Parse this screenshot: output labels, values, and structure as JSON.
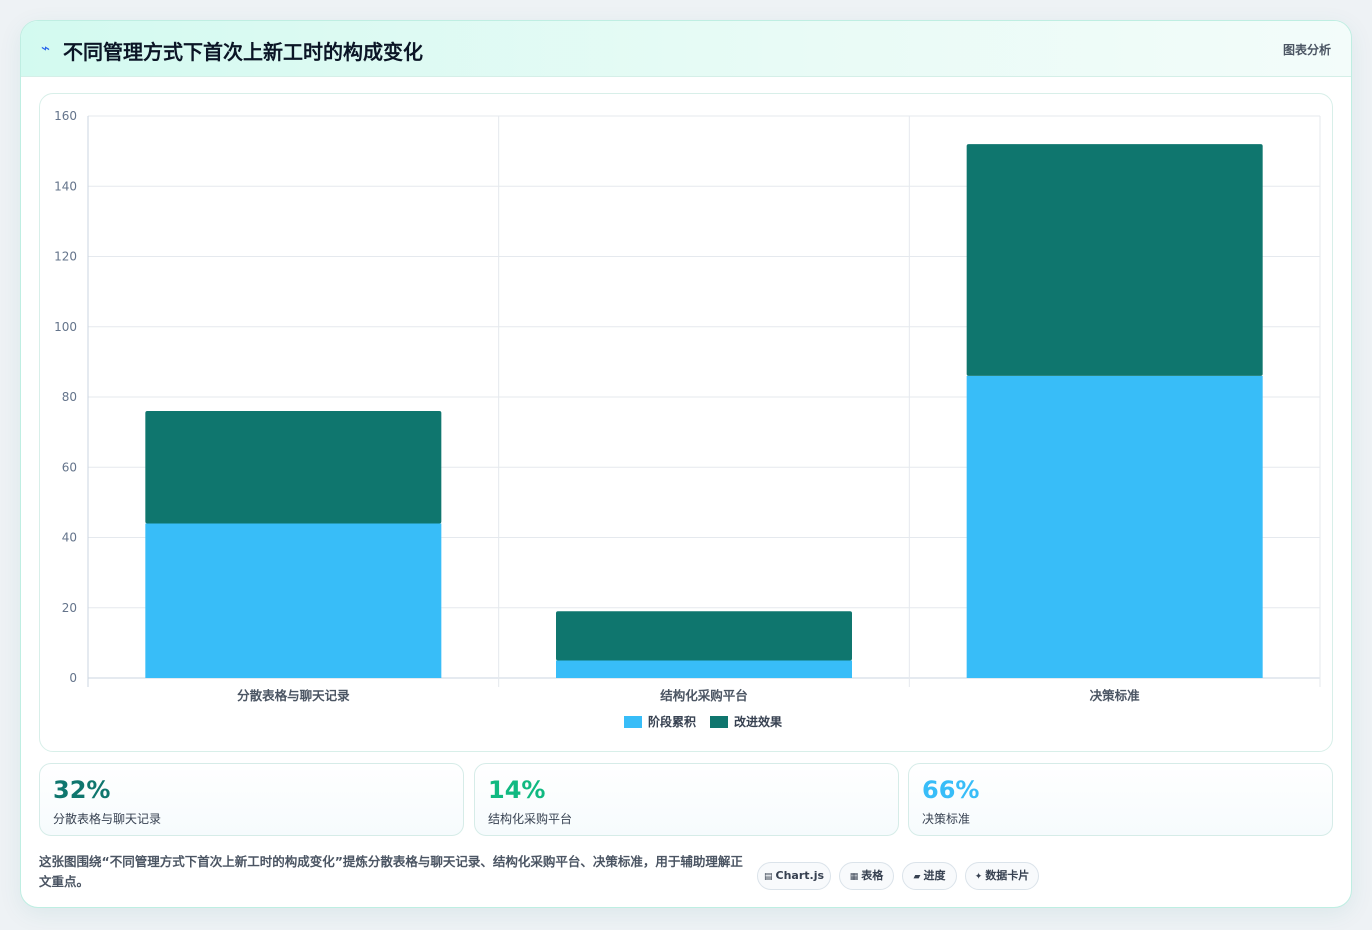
{
  "header": {
    "title": "不同管理方式下首次上新工时的构成变化",
    "tag": "图表分析",
    "icon": "trend-icon"
  },
  "chart_data": {
    "type": "bar",
    "stacked": true,
    "categories": [
      "分散表格与聊天记录",
      "结构化采购平台",
      "决策标准"
    ],
    "series": [
      {
        "name": "阶段累积",
        "values": [
          44,
          5,
          86
        ],
        "color": "#38bdf8"
      },
      {
        "name": "改进效果",
        "values": [
          32,
          14,
          66
        ],
        "color": "#0f766e"
      }
    ],
    "ylim": [
      0,
      160
    ],
    "yticks": [
      0,
      20,
      40,
      60,
      80,
      100,
      120,
      140,
      160
    ],
    "grid": true,
    "legend": "bottom"
  },
  "stats": [
    {
      "value": "32%",
      "label": "分散表格与聊天记录",
      "color": "#0f766e"
    },
    {
      "value": "14%",
      "label": "结构化采购平台",
      "color": "#10b981"
    },
    {
      "value": "66%",
      "label": "决策标准",
      "color": "#38bdf8"
    }
  ],
  "footer": {
    "text": "这张图围绕“不同管理方式下首次上新工时的构成变化”提炼分散表格与聊天记录、结构化采购平台、决策标准，用于辅助理解正文重点。",
    "chips": [
      {
        "icon": "chart-icon",
        "glyph": "▤",
        "label": "Chart.js"
      },
      {
        "icon": "table-icon",
        "glyph": "▦",
        "label": "表格"
      },
      {
        "icon": "progress-icon",
        "glyph": "▰",
        "label": "进度"
      },
      {
        "icon": "sparkle-icon",
        "glyph": "✦",
        "label": "数据卡片"
      }
    ]
  }
}
